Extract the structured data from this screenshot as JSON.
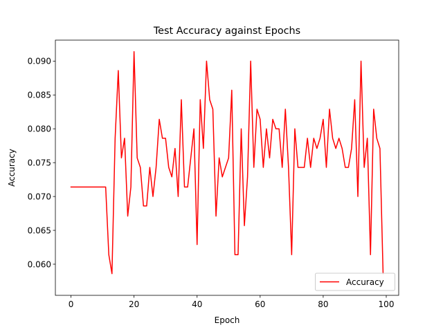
{
  "chart_data": {
    "type": "line",
    "title": "Test Accuracy against Epochs",
    "xlabel": "Epoch",
    "ylabel": "Accuracy",
    "xlim": [
      -4.95,
      103.95
    ],
    "ylim": [
      0.0554,
      0.0931
    ],
    "xticks": [
      0,
      20,
      40,
      60,
      80,
      100
    ],
    "xtick_labels": [
      "0",
      "20",
      "40",
      "60",
      "80",
      "100"
    ],
    "yticks": [
      0.06,
      0.065,
      0.07,
      0.075,
      0.08,
      0.085,
      0.09
    ],
    "ytick_labels": [
      "0.060",
      "0.065",
      "0.070",
      "0.075",
      "0.080",
      "0.085",
      "0.090"
    ],
    "grid": false,
    "legend_position": "lower right",
    "series": [
      {
        "name": "Accuracy",
        "color": "#ff0000",
        "x": [
          0,
          1,
          2,
          3,
          4,
          5,
          6,
          7,
          8,
          9,
          10,
          11,
          12,
          13,
          14,
          15,
          16,
          17,
          18,
          19,
          20,
          21,
          22,
          23,
          24,
          25,
          26,
          27,
          28,
          29,
          30,
          31,
          32,
          33,
          34,
          35,
          36,
          37,
          38,
          39,
          40,
          41,
          42,
          43,
          44,
          45,
          46,
          47,
          48,
          49,
          50,
          51,
          52,
          53,
          54,
          55,
          56,
          57,
          58,
          59,
          60,
          61,
          62,
          63,
          64,
          65,
          66,
          67,
          68,
          69,
          70,
          71,
          72,
          73,
          74,
          75,
          76,
          77,
          78,
          79,
          80,
          81,
          82,
          83,
          84,
          85,
          86,
          87,
          88,
          89,
          90,
          91,
          92,
          93,
          94,
          95,
          96,
          97,
          98,
          99
        ],
        "values": [
          0.0714,
          0.0714,
          0.0714,
          0.0714,
          0.0714,
          0.0714,
          0.0714,
          0.0714,
          0.0714,
          0.0714,
          0.0714,
          0.0714,
          0.0614,
          0.0586,
          0.0786,
          0.0886,
          0.0757,
          0.0786,
          0.0671,
          0.0714,
          0.0914,
          0.0757,
          0.0743,
          0.0686,
          0.0686,
          0.0743,
          0.07,
          0.0743,
          0.0814,
          0.0786,
          0.0786,
          0.0743,
          0.0729,
          0.0771,
          0.07,
          0.0843,
          0.0714,
          0.0714,
          0.0757,
          0.08,
          0.0629,
          0.0843,
          0.0771,
          0.09,
          0.0843,
          0.0829,
          0.0671,
          0.0757,
          0.0729,
          0.0743,
          0.0757,
          0.0857,
          0.0614,
          0.0614,
          0.08,
          0.0657,
          0.0729,
          0.09,
          0.0743,
          0.0829,
          0.0814,
          0.0743,
          0.08,
          0.0757,
          0.0814,
          0.08,
          0.08,
          0.0743,
          0.0829,
          0.0743,
          0.0614,
          0.08,
          0.0743,
          0.0743,
          0.0743,
          0.0786,
          0.0743,
          0.0786,
          0.0771,
          0.0786,
          0.0814,
          0.0743,
          0.0829,
          0.0786,
          0.0771,
          0.0786,
          0.0771,
          0.0743,
          0.0743,
          0.0771,
          0.0843,
          0.07,
          0.09,
          0.0743,
          0.0786,
          0.0614,
          0.0829,
          0.0786,
          0.0771,
          0.0586
        ]
      }
    ]
  }
}
